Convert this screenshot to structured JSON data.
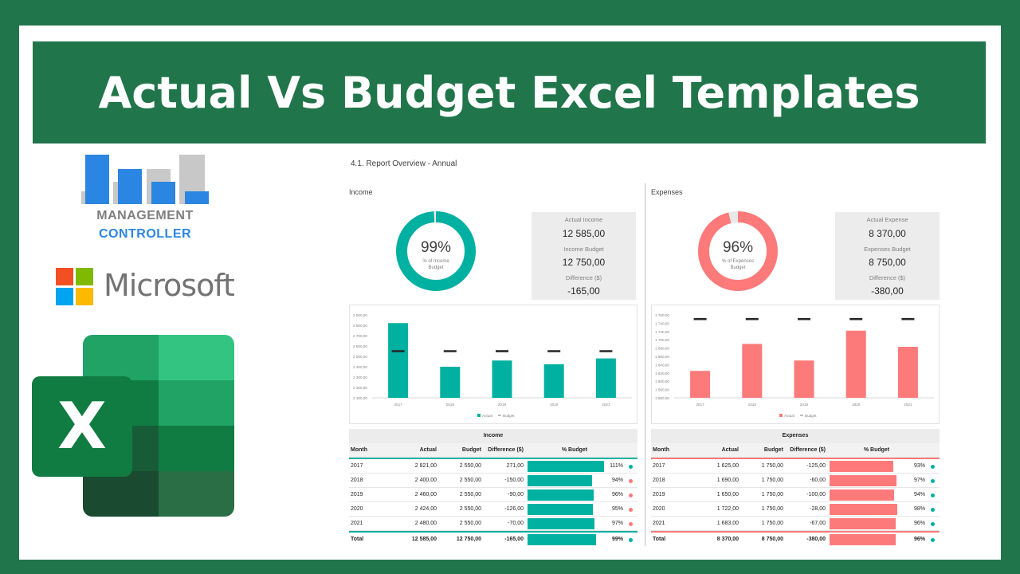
{
  "banner": {
    "title": "Actual Vs Budget Excel Templates"
  },
  "logos": {
    "management_controller": {
      "line1": "MANAGEMENT",
      "line2": "CONTROLLER"
    },
    "microsoft": {
      "text": "Microsoft"
    },
    "excel": {
      "letter": "X"
    }
  },
  "colors": {
    "income": "#00b0a0",
    "expenses": "#fc7a7a",
    "brand_green": "#21754a",
    "mc_blue": "#2b86e3"
  },
  "report": {
    "title": "4.1. Report Overview - Annual",
    "income": {
      "title": "Income",
      "donut": {
        "percent": "99%",
        "percent_value": 99,
        "caption1": "% of Income",
        "caption2": "Budget"
      },
      "kpis": [
        {
          "label": "Actual Income",
          "value": "12 585,00"
        },
        {
          "label": "Income Budget",
          "value": "12 750,00"
        },
        {
          "label": "Difference ($)",
          "value": "-165,00"
        }
      ],
      "chart": {
        "y_ticks": [
          "2 900,00",
          "2 800,00",
          "2 700,00",
          "2 600,00",
          "2 500,00",
          "2 400,00",
          "2 300,00",
          "2 200,00",
          "2 100,00"
        ],
        "legend_actual": "Actual",
        "legend_budget": "Budget"
      },
      "table": {
        "caption": "Income",
        "headers": {
          "month": "Month",
          "actual": "Actual",
          "budget": "Budget",
          "diff": "Difference ($)",
          "pct": "% Budget"
        },
        "rows": [
          {
            "month": "2017",
            "actual": "2 821,00",
            "budget": "2 550,00",
            "diff": "271,00",
            "pct": "111%"
          },
          {
            "month": "2018",
            "actual": "2 400,00",
            "budget": "2 550,00",
            "diff": "-150,00",
            "pct": "94%"
          },
          {
            "month": "2019",
            "actual": "2 460,00",
            "budget": "2 550,00",
            "diff": "-90,00",
            "pct": "96%"
          },
          {
            "month": "2020",
            "actual": "2 424,00",
            "budget": "2 550,00",
            "diff": "-126,00",
            "pct": "95%"
          },
          {
            "month": "2021",
            "actual": "2 480,00",
            "budget": "2 550,00",
            "diff": "-70,00",
            "pct": "97%"
          }
        ],
        "total": {
          "month": "Total",
          "actual": "12 585,00",
          "budget": "12 750,00",
          "diff": "-165,00",
          "pct": "99%"
        }
      }
    },
    "expenses": {
      "title": "Expenses",
      "donut": {
        "percent": "96%",
        "percent_value": 96,
        "caption1": "% of Expenses",
        "caption2": "Budget"
      },
      "kpis": [
        {
          "label": "Actual Expense",
          "value": "8 370,00"
        },
        {
          "label": "Expenses Budget",
          "value": "8 750,00"
        },
        {
          "label": "Difference ($)",
          "value": "-380,00"
        }
      ],
      "chart": {
        "y_ticks": [
          "1 760,00",
          "1 740,00",
          "1 720,00",
          "1 700,00",
          "1 680,00",
          "1 660,00",
          "1 640,00",
          "1 620,00",
          "1 600,00",
          "1 580,00",
          "1 560,00"
        ],
        "legend_actual": "Actual",
        "legend_budget": "Budget"
      },
      "table": {
        "caption": "Expenses",
        "headers": {
          "month": "Month",
          "actual": "Actual",
          "budget": "Budget",
          "diff": "Difference ($)",
          "pct": "% Budget"
        },
        "rows": [
          {
            "month": "2017",
            "actual": "1 625,00",
            "budget": "1 750,00",
            "diff": "-125,00",
            "pct": "93%"
          },
          {
            "month": "2018",
            "actual": "1 690,00",
            "budget": "1 750,00",
            "diff": "-60,00",
            "pct": "97%"
          },
          {
            "month": "2019",
            "actual": "1 650,00",
            "budget": "1 750,00",
            "diff": "-100,00",
            "pct": "94%"
          },
          {
            "month": "2020",
            "actual": "1 722,00",
            "budget": "1 750,00",
            "diff": "-28,00",
            "pct": "98%"
          },
          {
            "month": "2021",
            "actual": "1 683,00",
            "budget": "1 750,00",
            "diff": "-67,00",
            "pct": "96%"
          }
        ],
        "total": {
          "month": "Total",
          "actual": "8 370,00",
          "budget": "8 750,00",
          "diff": "-380,00",
          "pct": "96%"
        }
      }
    }
  },
  "chart_data": [
    {
      "type": "bar",
      "categories": [
        "2017",
        "2018",
        "2019",
        "2020",
        "2021"
      ],
      "series": [
        {
          "name": "Actual",
          "values": [
            2821,
            2400,
            2460,
            2424,
            2480
          ]
        },
        {
          "name": "Budget",
          "values": [
            2550,
            2550,
            2550,
            2550,
            2550
          ]
        }
      ],
      "ylim": [
        2100,
        2900
      ],
      "legend": "bottom"
    },
    {
      "type": "bar",
      "categories": [
        "2017",
        "2018",
        "2019",
        "2020",
        "2021"
      ],
      "series": [
        {
          "name": "Actual",
          "values": [
            1625,
            1690,
            1650,
            1722,
            1683
          ]
        },
        {
          "name": "Budget",
          "values": [
            1750,
            1750,
            1750,
            1750,
            1750
          ]
        }
      ],
      "ylim": [
        1560,
        1760
      ],
      "legend": "bottom"
    }
  ]
}
